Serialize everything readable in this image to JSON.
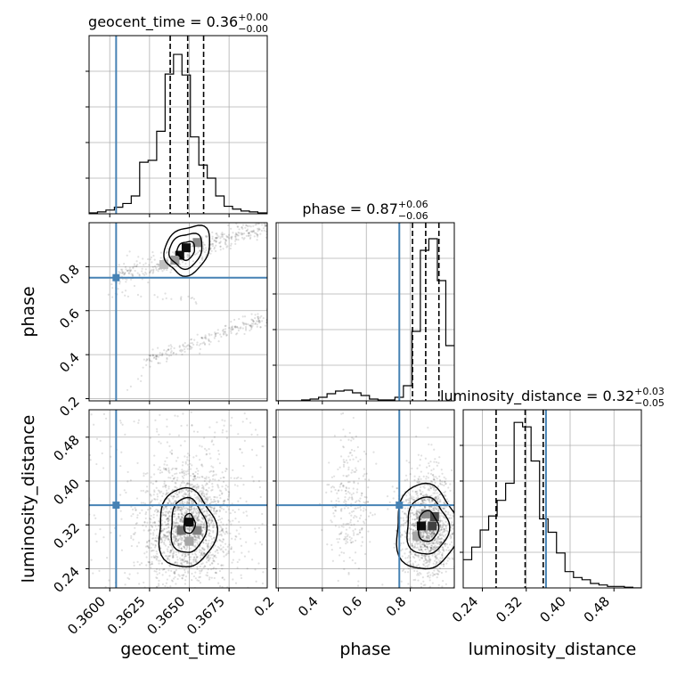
{
  "chart_data": {
    "type": "corner",
    "parameters": [
      {
        "name": "geocent_time",
        "xlabel": "geocent_time",
        "xlim": [
          0.3587,
          0.3699
        ],
        "ticks": [
          0.36,
          0.3625,
          0.365,
          0.3675
        ],
        "tick_labels": [
          "0.3600",
          "0.3625",
          "0.3650",
          "0.3675"
        ],
        "truth": 0.3604,
        "title": {
          "text": "geocent_time = 0.36",
          "sup": "+0.00",
          "sub": "−0.00"
        },
        "quantiles": [
          0.3638,
          0.3649,
          0.3659
        ],
        "hist": {
          "edges": [
            0.3587,
            0.35923,
            0.35976,
            0.36029,
            0.36082,
            0.36135,
            0.36188,
            0.36241,
            0.36295,
            0.36348,
            0.36401,
            0.36454,
            0.36507,
            0.3656,
            0.36613,
            0.36666,
            0.36719,
            0.36772,
            0.36825,
            0.36878,
            0.36931,
            0.3699
          ],
          "counts": [
            1,
            2,
            4,
            7,
            11,
            19,
            55,
            57,
            88,
            149,
            170,
            148,
            82,
            52,
            38,
            19,
            8,
            5,
            3,
            2,
            1
          ],
          "ymax": 190
        }
      },
      {
        "name": "phase",
        "xlabel": "phase",
        "xlim": [
          0.19,
          1.0
        ],
        "ticks": [
          0.2,
          0.4,
          0.6,
          0.8
        ],
        "tick_labels": [
          "0.2",
          "0.4",
          "0.6",
          "0.8"
        ],
        "truth": 0.75,
        "title": {
          "text": "phase = 0.87",
          "sup": "+0.06",
          "sub": "−0.06"
        },
        "quantiles": [
          0.81,
          0.87,
          0.93
        ],
        "hist": {
          "edges": [
            0.19,
            0.2286,
            0.2671,
            0.3057,
            0.3443,
            0.3829,
            0.4214,
            0.46,
            0.4986,
            0.5371,
            0.5757,
            0.6143,
            0.6529,
            0.6914,
            0.73,
            0.7686,
            0.8071,
            0.8457,
            0.8843,
            0.9229,
            0.9614,
            1.0
          ],
          "counts": [
            0,
            0,
            0,
            1,
            2,
            4,
            8,
            11,
            12,
            9,
            6,
            2,
            1,
            1,
            4,
            17,
            78,
            169,
            182,
            135,
            62
          ],
          "ymax": 200
        }
      },
      {
        "name": "luminosity_distance",
        "xlabel": "luminosity_distance",
        "xlim": [
          0.205,
          0.53
        ],
        "ticks": [
          0.24,
          0.32,
          0.4,
          0.48
        ],
        "tick_labels": [
          "0.24",
          "0.32",
          "0.40",
          "0.48"
        ],
        "truth": 0.356,
        "title": {
          "text": "luminosity_distance = 0.32",
          "sup": "+0.03",
          "sub": "−0.05"
        },
        "quantiles": [
          0.265,
          0.318,
          0.351
        ],
        "hist": {
          "edges": [
            0.205,
            0.2205,
            0.236,
            0.2514,
            0.2669,
            0.2824,
            0.2979,
            0.3133,
            0.3288,
            0.3443,
            0.3598,
            0.3752,
            0.3907,
            0.4062,
            0.4217,
            0.4371,
            0.4526,
            0.4681,
            0.4836,
            0.499,
            0.5145,
            0.53
          ],
          "counts": [
            38,
            55,
            78,
            97,
            118,
            141,
            223,
            217,
            171,
            93,
            75,
            47,
            22,
            14,
            11,
            6,
            4,
            2,
            2,
            1,
            0
          ],
          "ymax": 240
        }
      }
    ],
    "panels_2d": [
      {
        "x": "geocent_time",
        "y": "phase",
        "ylim": [
          0.19,
          1.0
        ],
        "yticks": [
          0.2,
          0.4,
          0.6,
          0.8
        ],
        "ytick_labels": [
          "0.2",
          "0.4",
          "0.6",
          "0.8"
        ],
        "ylabel": "phase",
        "truth": [
          0.3604,
          0.75
        ],
        "clusters": [
          {
            "type": "band",
            "from": [
              0.3601,
              0.74
            ],
            "to": [
              0.3699,
              0.99
            ],
            "width": 0.028,
            "n": 420,
            "seed": 11
          },
          {
            "type": "band",
            "from": [
              0.3619,
              0.37
            ],
            "to": [
              0.3699,
              0.57
            ],
            "width": 0.016,
            "n": 220,
            "seed": 23
          },
          {
            "type": "band",
            "from": [
              0.3588,
              0.68
            ],
            "to": [
              0.3655,
              0.65
            ],
            "width": 0.01,
            "n": 25,
            "seed": 31
          },
          {
            "type": "band",
            "from": [
              0.361,
              0.25
            ],
            "to": [
              0.364,
              0.41
            ],
            "width": 0.014,
            "n": 12,
            "seed": 41
          }
        ],
        "contours": [
          {
            "center": [
              0.3648,
              0.874
            ],
            "radii": [
              0.0006,
              0.038
            ],
            "rotation": 0.95
          },
          {
            "center": [
              0.3648,
              0.874
            ],
            "radii": [
              0.00115,
              0.07
            ],
            "rotation": 0.95
          },
          {
            "center": [
              0.3649,
              0.877
            ],
            "radii": [
              0.00165,
              0.095
            ],
            "rotation": 0.95
          }
        ],
        "hist_cells": [
          {
            "x": 0.3648,
            "y": 0.886,
            "level": 0.95
          },
          {
            "x": 0.3644,
            "y": 0.852,
            "level": 0.95
          },
          {
            "x": 0.3655,
            "y": 0.91,
            "level": 0.45
          },
          {
            "x": 0.3641,
            "y": 0.83,
            "level": 0.4
          },
          {
            "x": 0.3634,
            "y": 0.81,
            "level": 0.25
          }
        ]
      },
      {
        "x": "geocent_time",
        "y": "luminosity_distance",
        "ylim": [
          0.205,
          0.53
        ],
        "yticks": [
          0.24,
          0.32,
          0.4,
          0.48
        ],
        "ytick_labels": [
          "0.24",
          "0.32",
          "0.40",
          "0.48"
        ],
        "ylabel": "luminosity_distance",
        "truth": [
          0.3604,
          0.356
        ],
        "clusters": [
          {
            "type": "gauss",
            "center": [
              0.3649,
              0.32
            ],
            "sigma": [
              0.0014,
              0.055
            ],
            "n": 1700,
            "seed": 51
          },
          {
            "type": "uniform",
            "from": [
              0.3587,
              0.205
            ],
            "to": [
              0.3699,
              0.53
            ],
            "n": 250,
            "seed": 57
          }
        ],
        "contours": [
          {
            "center": [
              0.365,
              0.322
            ],
            "radii": [
              0.00035,
              0.018
            ],
            "rotation": 0
          },
          {
            "center": [
              0.3649,
              0.318
            ],
            "radii": [
              0.0011,
              0.05
            ],
            "rotation": 0
          },
          {
            "center": [
              0.3648,
              0.313
            ],
            "radii": [
              0.0018,
              0.072
            ],
            "rotation": 0
          }
        ],
        "hist_cells": [
          {
            "x": 0.365,
            "y": 0.325,
            "level": 0.95
          },
          {
            "x": 0.3645,
            "y": 0.31,
            "level": 0.55
          },
          {
            "x": 0.3655,
            "y": 0.31,
            "level": 0.5
          },
          {
            "x": 0.365,
            "y": 0.29,
            "level": 0.35
          }
        ]
      },
      {
        "x": "phase",
        "y": "luminosity_distance",
        "ylim": [
          0.205,
          0.53
        ],
        "truth": [
          0.75,
          0.356
        ],
        "clusters": [
          {
            "type": "gauss",
            "center": [
              0.88,
              0.315
            ],
            "sigma": [
              0.06,
              0.05
            ],
            "n": 1300,
            "seed": 61
          },
          {
            "type": "gauss",
            "center": [
              0.52,
              0.35
            ],
            "sigma": [
              0.045,
              0.065
            ],
            "n": 260,
            "seed": 67
          }
        ],
        "contours": [
          {
            "center": [
              0.88,
              0.317
            ],
            "radii": [
              0.045,
              0.028
            ],
            "rotation": 0
          },
          {
            "center": [
              0.875,
              0.317
            ],
            "radii": [
              0.095,
              0.052
            ],
            "rotation": 0
          },
          {
            "center": [
              0.87,
              0.315
            ],
            "radii": [
              0.14,
              0.078
            ],
            "rotation": 0
          }
        ],
        "hist_cells": [
          {
            "x": 0.85,
            "y": 0.318,
            "level": 0.95
          },
          {
            "x": 0.9,
            "y": 0.318,
            "level": 0.75
          },
          {
            "x": 0.91,
            "y": 0.335,
            "level": 0.7
          },
          {
            "x": 0.87,
            "y": 0.34,
            "level": 0.45
          },
          {
            "x": 0.83,
            "y": 0.3,
            "level": 0.35
          }
        ]
      }
    ],
    "truth_color": "#4682b4",
    "grid": true
  }
}
